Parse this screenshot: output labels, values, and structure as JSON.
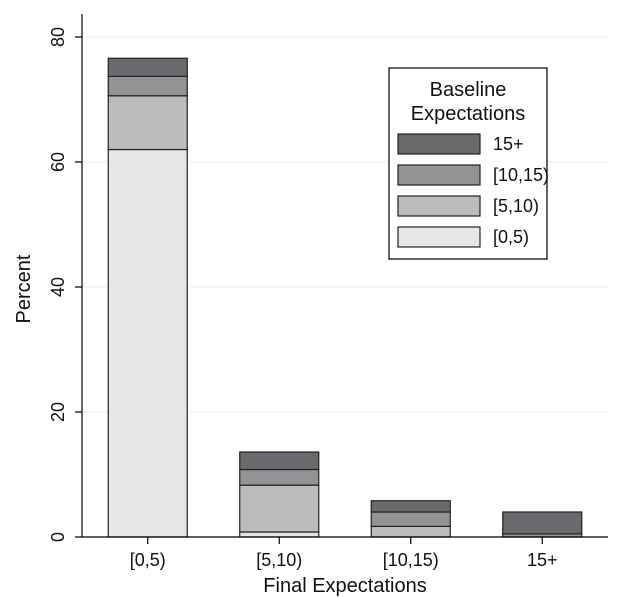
{
  "chart_data": {
    "type": "bar",
    "stacked": true,
    "xlabel": "Final Expectations",
    "ylabel": "Percent",
    "ylim": [
      0,
      83
    ],
    "yticks": [
      0,
      20,
      40,
      60,
      80
    ],
    "grid": true,
    "legend_position": "top-right",
    "legend_title_lines": [
      "Baseline",
      "Expectations"
    ],
    "categories": [
      "[0,5)",
      "[5,10)",
      "[10,15)",
      "15+"
    ],
    "series": [
      {
        "name": "[0,5)",
        "color": "#e6e6e6",
        "values": [
          62.0,
          0.8,
          0.0,
          0.0
        ]
      },
      {
        "name": "[5,10)",
        "color": "#bcbcbc",
        "values": [
          8.6,
          7.5,
          1.7,
          0.0
        ]
      },
      {
        "name": "[10,15)",
        "color": "#939395",
        "values": [
          3.1,
          2.5,
          2.3,
          0.5
        ]
      },
      {
        "name": "15+",
        "color": "#6a6a6e",
        "values": [
          2.9,
          2.8,
          1.8,
          3.5
        ]
      }
    ]
  }
}
